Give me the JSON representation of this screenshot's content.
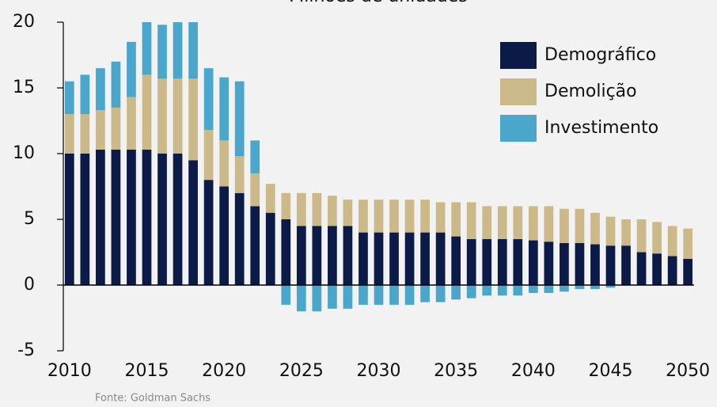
{
  "chart_data": {
    "type": "stacked_bar",
    "title": "Milhões de unidades",
    "source": "Fonte: Goldman Sachs",
    "x": [
      2010,
      2011,
      2012,
      2013,
      2014,
      2015,
      2016,
      2017,
      2018,
      2019,
      2020,
      2021,
      2022,
      2023,
      2024,
      2025,
      2026,
      2027,
      2028,
      2029,
      2030,
      2031,
      2032,
      2033,
      2034,
      2035,
      2036,
      2037,
      2038,
      2039,
      2040,
      2041,
      2042,
      2043,
      2044,
      2045,
      2046,
      2047,
      2048,
      2049,
      2050
    ],
    "xlim": [
      2009.6,
      2050.4
    ],
    "xticks": [
      2010,
      2015,
      2020,
      2025,
      2030,
      2035,
      2040,
      2045,
      2050
    ],
    "ylim": [
      -5,
      20
    ],
    "yticks": [
      -5,
      0,
      5,
      10,
      15,
      20
    ],
    "legend": "top-right",
    "series": [
      {
        "name": "Demográfico",
        "color": "#0c1a47",
        "values": [
          10,
          10,
          10.3,
          10.3,
          10.3,
          10.3,
          10,
          10,
          9.5,
          8,
          7.5,
          7,
          6,
          5.5,
          5,
          4.5,
          4.5,
          4.5,
          4.5,
          4,
          4,
          4,
          4,
          4,
          4,
          3.7,
          3.5,
          3.5,
          3.5,
          3.5,
          3.4,
          3.3,
          3.2,
          3.2,
          3.1,
          3,
          3,
          2.5,
          2.4,
          2.2,
          2
        ]
      },
      {
        "name": "Demolição",
        "color": "#cbb98a",
        "values": [
          3,
          3,
          3,
          3.2,
          4,
          5.7,
          5.7,
          5.7,
          6.2,
          3.8,
          3.5,
          2.8,
          2.5,
          2.2,
          2,
          2.5,
          2.5,
          2.3,
          2,
          2.5,
          2.5,
          2.5,
          2.5,
          2.5,
          2.3,
          2.6,
          2.8,
          2.5,
          2.5,
          2.5,
          2.6,
          2.7,
          2.6,
          2.6,
          2.4,
          2.2,
          2,
          2.5,
          2.4,
          2.3,
          2.3
        ]
      },
      {
        "name": "Investimento",
        "color": "#4ba6cc",
        "values": [
          2.5,
          3,
          3.2,
          3.5,
          4.2,
          4,
          4.1,
          4.3,
          4.3,
          4.7,
          4.8,
          5.7,
          2.5,
          0,
          -1.5,
          -2,
          -2,
          -1.8,
          -1.8,
          -1.5,
          -1.5,
          -1.5,
          -1.5,
          -1.3,
          -1.3,
          -1.1,
          -1,
          -0.8,
          -0.8,
          -0.8,
          -0.6,
          -0.6,
          -0.5,
          -0.3,
          -0.3,
          -0.2,
          0,
          0,
          0,
          0,
          0
        ]
      }
    ]
  }
}
